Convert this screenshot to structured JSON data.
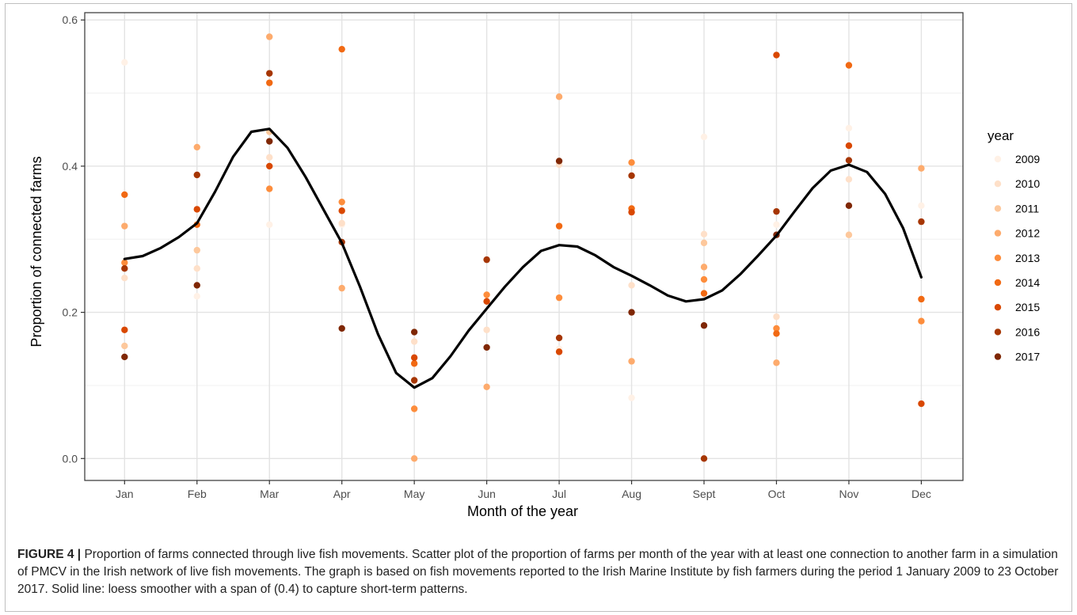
{
  "caption": {
    "label": "FIGURE 4 |",
    "text": "Proportion of farms connected through live fish movements. Scatter plot of the proportion of farms per month of the year with at least one connection to another farm in a simulation of PMCV in the Irish network of live fish movements. The graph is based on fish movements reported to the Irish Marine Institute by fish farmers during the period 1 January 2009 to 23 October 2017. Solid line: loess smoother with a span of (0.4) to capture short-term patterns."
  },
  "chart_data": {
    "type": "scatter",
    "xlabel": "Month of the year",
    "ylabel": "Proportion of connected farms",
    "categories": [
      "Jan",
      "Feb",
      "Mar",
      "Apr",
      "May",
      "Jun",
      "Jul",
      "Aug",
      "Sept",
      "Oct",
      "Nov",
      "Dec"
    ],
    "ylim": [
      -0.03,
      0.61
    ],
    "yticks": [
      0.0,
      0.2,
      0.4,
      0.6
    ],
    "ytick_labels": [
      "0.0",
      "0.2",
      "0.4",
      "0.6"
    ],
    "grid": true,
    "legend": {
      "title": "year",
      "placement": "right"
    },
    "series": [
      {
        "name": "2009",
        "color": "#fff1e6",
        "values": [
          0.542,
          0.222,
          0.32,
          0.32,
          0.102,
          null,
          0.15,
          0.083,
          0.44,
          0.32,
          0.452,
          0.346
        ]
      },
      {
        "name": "2010",
        "color": "#fee0c9",
        "values": [
          0.247,
          0.26,
          0.412,
          0.322,
          0.16,
          0.176,
          0.402,
          0.237,
          0.307,
          0.194,
          0.382,
          null
        ]
      },
      {
        "name": "2011",
        "color": "#fdc89c",
        "values": [
          0.154,
          0.285,
          0.447,
          null,
          null,
          null,
          null,
          null,
          0.295,
          null,
          0.306,
          null
        ]
      },
      {
        "name": "2012",
        "color": "#fdab6d",
        "values": [
          0.318,
          0.426,
          0.577,
          0.233,
          0.0,
          0.098,
          0.495,
          0.133,
          0.262,
          0.131,
          null,
          0.397
        ]
      },
      {
        "name": "2013",
        "color": "#fd8d3c",
        "values": [
          0.268,
          null,
          0.369,
          0.351,
          0.068,
          0.224,
          0.22,
          0.405,
          0.245,
          0.178,
          null,
          0.188
        ]
      },
      {
        "name": "2014",
        "color": "#f16913",
        "values": [
          0.361,
          0.32,
          0.514,
          0.56,
          0.13,
          null,
          0.318,
          0.342,
          0.226,
          0.171,
          0.538,
          0.218
        ]
      },
      {
        "name": "2015",
        "color": "#d94801",
        "values": [
          0.176,
          0.341,
          0.4,
          0.339,
          0.138,
          0.215,
          0.146,
          0.337,
          null,
          0.552,
          0.428,
          0.075
        ]
      },
      {
        "name": "2016",
        "color": "#a63603",
        "values": [
          0.26,
          0.388,
          0.527,
          0.296,
          0.107,
          0.272,
          0.165,
          0.387,
          0.0,
          0.338,
          0.408,
          0.324
        ]
      },
      {
        "name": "2017",
        "color": "#7f2704",
        "values": [
          0.139,
          0.237,
          0.434,
          0.178,
          0.173,
          0.152,
          0.407,
          0.2,
          0.182,
          0.306,
          0.346,
          null
        ]
      }
    ],
    "smoother": {
      "name": "loess",
      "color": "#000000",
      "x": [
        1.0,
        1.25,
        1.5,
        1.75,
        2.0,
        2.25,
        2.5,
        2.75,
        3.0,
        3.25,
        3.5,
        3.75,
        4.0,
        4.25,
        4.5,
        4.75,
        5.0,
        5.25,
        5.5,
        5.75,
        6.0,
        6.25,
        6.5,
        6.75,
        7.0,
        7.25,
        7.5,
        7.75,
        8.0,
        8.25,
        8.5,
        8.75,
        9.0,
        9.25,
        9.5,
        9.75,
        10.0,
        10.25,
        10.5,
        10.75,
        11.0,
        11.25,
        11.5,
        11.75,
        12.0
      ],
      "y": [
        0.273,
        0.277,
        0.288,
        0.303,
        0.322,
        0.365,
        0.413,
        0.447,
        0.451,
        0.425,
        0.385,
        0.34,
        0.295,
        0.235,
        0.17,
        0.117,
        0.097,
        0.11,
        0.14,
        0.175,
        0.205,
        0.235,
        0.262,
        0.284,
        0.292,
        0.29,
        0.278,
        0.262,
        0.25,
        0.237,
        0.223,
        0.215,
        0.218,
        0.23,
        0.252,
        0.278,
        0.305,
        0.338,
        0.37,
        0.394,
        0.402,
        0.392,
        0.362,
        0.315,
        0.248
      ]
    }
  }
}
